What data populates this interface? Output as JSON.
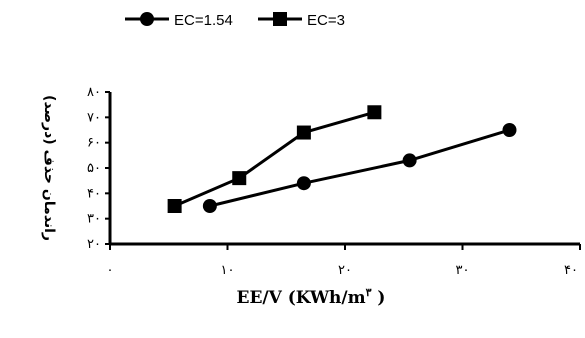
{
  "chart_data": {
    "type": "line",
    "xlabel": "EE/V (KWh/m",
    "xlabel_superscript": "۳",
    "xlabel_close": " )",
    "ylabel": "راندمان حذف (درصد)",
    "xlim": [
      0,
      40
    ],
    "ylim": [
      20,
      80
    ],
    "x_ticks": [
      0,
      10,
      20,
      30,
      40
    ],
    "x_tick_labels": [
      "۰",
      "۱۰",
      "۲۰",
      "۳۰",
      "۴۰"
    ],
    "y_ticks": [
      20,
      30,
      40,
      50,
      60,
      70,
      80
    ],
    "y_tick_labels": [
      "۲۰",
      "۳۰",
      "۴۰",
      "۵۰",
      "۶۰",
      "۷۰",
      "۸۰"
    ],
    "legend_position": "top-left",
    "grid": false,
    "series": [
      {
        "name": "EC=1.54",
        "marker": "circle",
        "color": "#000000",
        "x": [
          8.5,
          16.5,
          25.5,
          34.0
        ],
        "y": [
          35,
          44,
          53,
          65
        ]
      },
      {
        "name": "EC=3",
        "marker": "square",
        "color": "#000000",
        "x": [
          5.5,
          11.0,
          16.5,
          22.5
        ],
        "y": [
          35,
          46,
          64,
          72
        ]
      }
    ]
  }
}
